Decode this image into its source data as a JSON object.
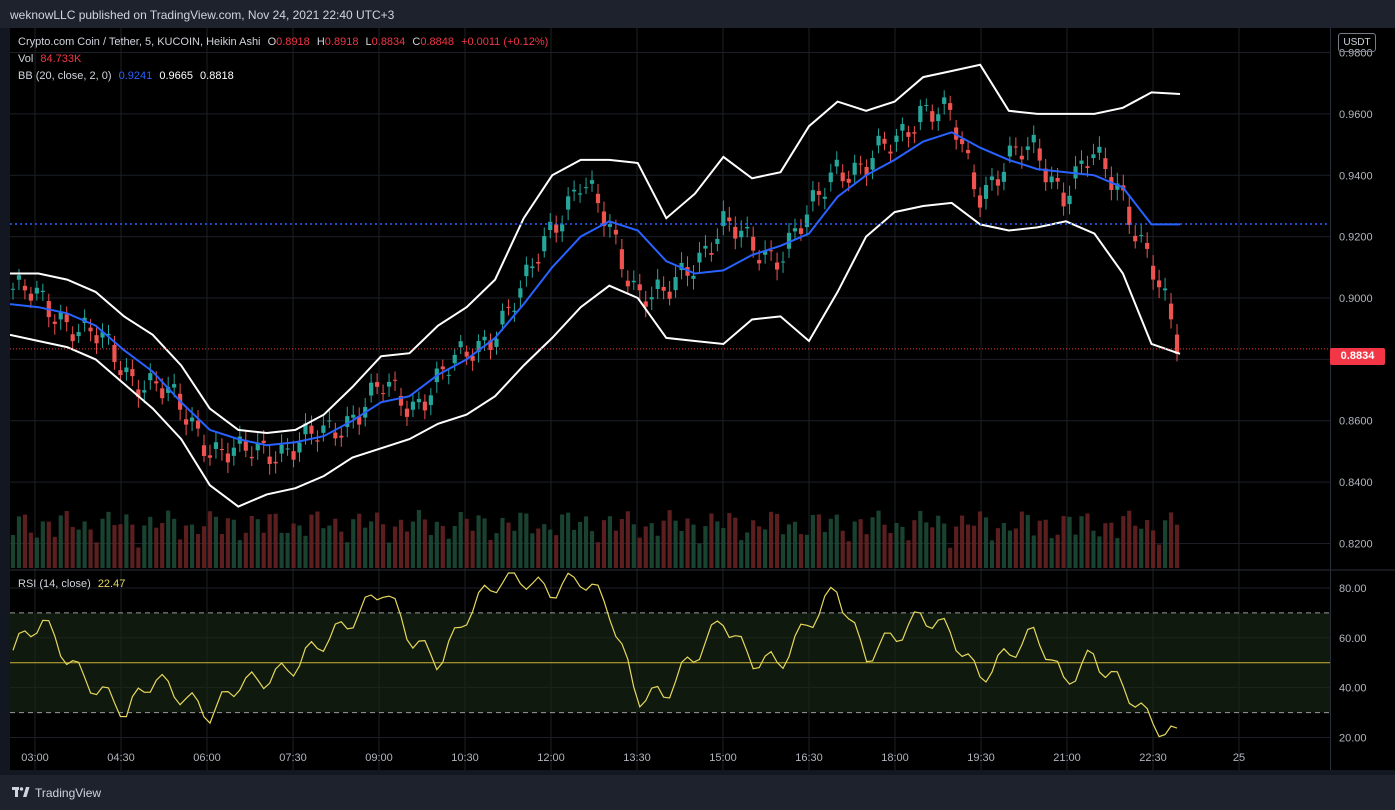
{
  "header": {
    "publisher": "weknowLLC published on TradingView.com, Nov 24, 2021 22:40 UTC+3"
  },
  "legend": {
    "symbol": "Crypto.com Coin / Tether, 5, KUCOIN, Heikin Ashi",
    "o_label": "O",
    "o_value": "0.8918",
    "h_label": "H",
    "h_value": "0.8918",
    "l_label": "L",
    "l_value": "0.8834",
    "c_label": "C",
    "c_value": "0.8848",
    "change": "+0.0011 (+0.12%)",
    "vol_label": "Vol",
    "vol_value": "84.733K",
    "bb_label": "BB (20, close, 2, 0)",
    "bb_basis": "0.9241",
    "bb_upper": "0.9665",
    "bb_lower": "0.8818",
    "rsi_label": "RSI (14, close)",
    "rsi_value": "22.47"
  },
  "price_scale": {
    "currency": "USDT",
    "last_price": "0.8834",
    "ticks": [
      "0.9800",
      "0.9600",
      "0.9400",
      "0.9200",
      "0.9000",
      "0.8800",
      "0.8600",
      "0.8400",
      "0.8200"
    ]
  },
  "rsi_scale": {
    "ticks": [
      "80.00",
      "60.00",
      "40.00",
      "20.00"
    ]
  },
  "time_axis": {
    "ticks": [
      "03:00",
      "04:30",
      "06:00",
      "07:30",
      "09:00",
      "10:30",
      "12:00",
      "13:30",
      "15:00",
      "16:30",
      "18:00",
      "19:30",
      "21:00",
      "22:30",
      "25"
    ]
  },
  "footer": {
    "brand": "TradingView"
  },
  "colors": {
    "up": "#26a69a",
    "down": "#ef5350",
    "bb_basis": "#2962ff",
    "bb_band": "#ffffff",
    "rsi": "#e5d85c",
    "last_price": "#f23645"
  },
  "chart_data": [
    {
      "type": "line",
      "subtype": "candlestick (Heikin Ashi) with Bollinger Bands",
      "xlabel": "",
      "ylabel": "",
      "x": [
        "02:35",
        "03:00",
        "03:30",
        "04:00",
        "04:30",
        "05:00",
        "05:30",
        "06:00",
        "06:30",
        "07:00",
        "07:30",
        "08:00",
        "08:30",
        "09:00",
        "09:30",
        "10:00",
        "10:30",
        "11:00",
        "11:30",
        "12:00",
        "12:30",
        "13:00",
        "13:30",
        "14:00",
        "14:30",
        "15:00",
        "15:30",
        "16:00",
        "16:30",
        "17:00",
        "17:30",
        "18:00",
        "18:30",
        "19:00",
        "19:30",
        "20:00",
        "20:30",
        "21:00",
        "21:30",
        "22:00",
        "22:30",
        "22:40"
      ],
      "ylim": [
        0.812,
        0.988
      ],
      "series": [
        {
          "name": "BB basis",
          "values": [
            0.898,
            0.897,
            0.895,
            0.891,
            0.883,
            0.876,
            0.866,
            0.857,
            0.854,
            0.852,
            0.853,
            0.855,
            0.86,
            0.866,
            0.868,
            0.875,
            0.88,
            0.887,
            0.898,
            0.91,
            0.92,
            0.925,
            0.922,
            0.912,
            0.908,
            0.909,
            0.914,
            0.917,
            0.921,
            0.933,
            0.94,
            0.945,
            0.951,
            0.954,
            0.949,
            0.945,
            0.942,
            0.941,
            0.94,
            0.936,
            0.924,
            0.924
          ]
        },
        {
          "name": "BB upper",
          "values": [
            0.908,
            0.908,
            0.906,
            0.902,
            0.894,
            0.888,
            0.878,
            0.864,
            0.857,
            0.856,
            0.857,
            0.862,
            0.871,
            0.881,
            0.882,
            0.891,
            0.897,
            0.906,
            0.926,
            0.94,
            0.945,
            0.945,
            0.944,
            0.926,
            0.934,
            0.946,
            0.939,
            0.941,
            0.956,
            0.964,
            0.961,
            0.964,
            0.972,
            0.974,
            0.976,
            0.961,
            0.96,
            0.96,
            0.96,
            0.962,
            0.967,
            0.9665
          ]
        },
        {
          "name": "BB lower",
          "values": [
            0.888,
            0.886,
            0.884,
            0.88,
            0.872,
            0.864,
            0.854,
            0.839,
            0.832,
            0.836,
            0.838,
            0.842,
            0.848,
            0.851,
            0.854,
            0.859,
            0.862,
            0.868,
            0.878,
            0.887,
            0.897,
            0.904,
            0.9,
            0.887,
            0.886,
            0.885,
            0.893,
            0.894,
            0.886,
            0.902,
            0.92,
            0.928,
            0.93,
            0.931,
            0.924,
            0.922,
            0.923,
            0.925,
            0.921,
            0.908,
            0.885,
            0.8818
          ]
        },
        {
          "name": "Close",
          "values": [
            0.903,
            0.898,
            0.893,
            0.886,
            0.876,
            0.872,
            0.862,
            0.852,
            0.848,
            0.851,
            0.852,
            0.855,
            0.863,
            0.87,
            0.865,
            0.874,
            0.881,
            0.891,
            0.902,
            0.925,
            0.938,
            0.922,
            0.903,
            0.899,
            0.913,
            0.924,
            0.916,
            0.915,
            0.925,
            0.944,
            0.942,
            0.95,
            0.963,
            0.958,
            0.935,
            0.944,
            0.948,
            0.935,
            0.945,
            0.937,
            0.912,
            0.8848
          ]
        }
      ],
      "levels": {
        "dotted_basis": 0.9241,
        "last_price": 0.8834
      }
    },
    {
      "type": "line",
      "title": "RSI (14, close)",
      "xlabel": "",
      "ylabel": "",
      "x": [
        "02:35",
        "03:00",
        "03:30",
        "04:00",
        "04:30",
        "05:00",
        "05:30",
        "06:00",
        "06:30",
        "07:00",
        "07:30",
        "08:00",
        "08:30",
        "09:00",
        "09:30",
        "10:00",
        "10:30",
        "11:00",
        "11:30",
        "12:00",
        "12:30",
        "13:00",
        "13:30",
        "14:00",
        "14:30",
        "15:00",
        "15:30",
        "16:00",
        "16:30",
        "17:00",
        "17:30",
        "18:00",
        "18:30",
        "19:00",
        "19:30",
        "20:00",
        "20:30",
        "21:00",
        "21:30",
        "22:00",
        "22:30",
        "22:40"
      ],
      "ylim": [
        17,
        86
      ],
      "series": [
        {
          "name": "RSI",
          "values": [
            55,
            65,
            52,
            40,
            28,
            45,
            38,
            27,
            42,
            46,
            48,
            58,
            70,
            80,
            58,
            52,
            70,
            80,
            85,
            80,
            82,
            72,
            38,
            36,
            52,
            70,
            50,
            48,
            68,
            80,
            50,
            62,
            70,
            60,
            45,
            55,
            60,
            42,
            55,
            40,
            26,
            22.47
          ]
        }
      ],
      "levels": {
        "upper": 70,
        "middle": 50,
        "lower": 30
      }
    }
  ]
}
